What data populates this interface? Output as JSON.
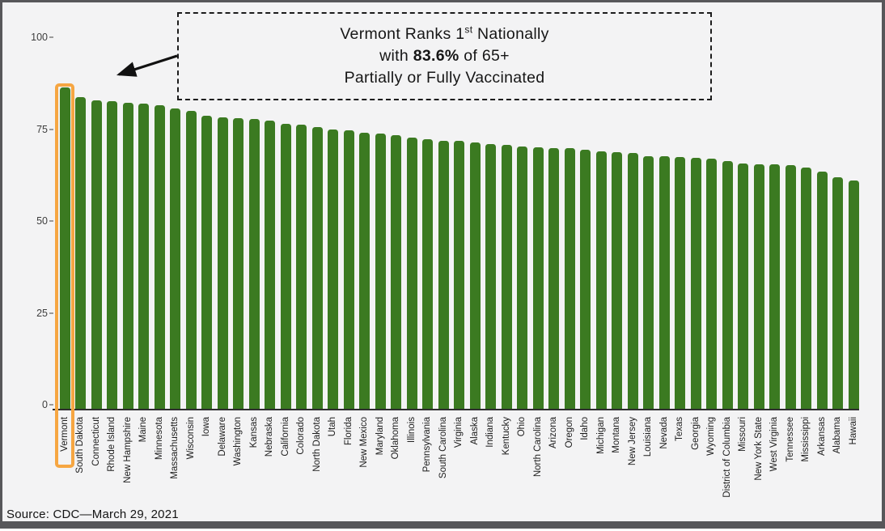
{
  "frame": {
    "background_color": "#f3f3f4",
    "border_color": "#57575a"
  },
  "annotation": {
    "line1_prefix": "Vermont Ranks 1",
    "line1_sup": "st",
    "line1_suffix": " Nationally",
    "line2_prefix": "with ",
    "line2_bold": "83.6%",
    "line2_suffix": " of 65+",
    "line3": "Partially or Fully Vaccinated"
  },
  "source_note": "Source: CDC—March 29, 2021",
  "chart_data": {
    "type": "bar",
    "title": "Vermont Ranks 1st Nationally with 83.6% of 65+ Partially or Fully Vaccinated",
    "xlabel": "",
    "ylabel": "",
    "ylim": [
      0,
      100
    ],
    "yticks": [
      0,
      25,
      50,
      75,
      100
    ],
    "grid": false,
    "legend": false,
    "bar_color": "#3B7A21",
    "highlight": {
      "category": "Vermont",
      "box_color": "#F6A642",
      "value_label": "83.6%"
    },
    "categories": [
      "Vermont",
      "South Dakota",
      "Connecticut",
      "Rhode Island",
      "New Hampshire",
      "Maine",
      "Minnesota",
      "Massachusetts",
      "Wisconsin",
      "Iowa",
      "Delaware",
      "Washington",
      "Kansas",
      "Nebraska",
      "California",
      "Colorado",
      "North Dakota",
      "Utah",
      "Florida",
      "New Mexico",
      "Maryland",
      "Oklahoma",
      "Illinois",
      "Pennsylvania",
      "South Carolina",
      "Virginia",
      "Alaska",
      "Indiana",
      "Kentucky",
      "Ohio",
      "North Carolina",
      "Arizona",
      "Oregon",
      "Idaho",
      "Michigan",
      "Montana",
      "New Jersey",
      "Louisiana",
      "Nevada",
      "Texas",
      "Georgia",
      "Wyoming",
      "District of Columbia",
      "Missouri",
      "New York State",
      "West Virginia",
      "Tennessee",
      "Mississippi",
      "Arkansas",
      "Alabama",
      "Hawaii"
    ],
    "values": [
      83.6,
      81.2,
      80.3,
      80.1,
      79.7,
      79.5,
      79.0,
      78.3,
      77.5,
      76.3,
      75.9,
      75.7,
      75.4,
      75.0,
      74.3,
      73.9,
      73.3,
      72.8,
      72.5,
      71.9,
      71.6,
      71.2,
      70.6,
      70.3,
      69.8,
      69.7,
      69.4,
      69.0,
      68.7,
      68.4,
      68.1,
      68.0,
      67.8,
      67.4,
      67.1,
      66.8,
      66.6,
      65.9,
      65.8,
      65.6,
      65.4,
      65.2,
      64.6,
      63.9,
      63.7,
      63.6,
      63.4,
      62.9,
      61.8,
      60.3,
      59.4
    ]
  }
}
